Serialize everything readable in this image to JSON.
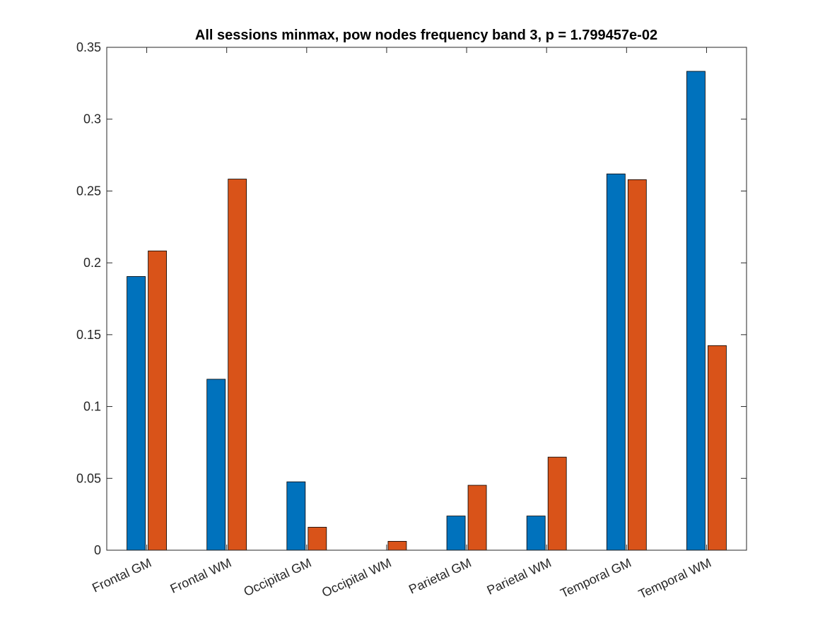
{
  "chart_data": {
    "type": "bar",
    "title": "All sessions minmax, pow nodes frequency band 3, p = 1.799457e-02",
    "xlabel": "",
    "ylabel": "",
    "categories": [
      "Frontal GM",
      "Frontal WM",
      "Occipital GM",
      "Occipital WM",
      "Parietal GM",
      "Parietal WM",
      "Temporal GM",
      "Temporal WM"
    ],
    "series": [
      {
        "values": [
          0.1905,
          0.119,
          0.0476,
          0.0,
          0.0238,
          0.0238,
          0.2619,
          0.3333
        ]
      },
      {
        "values": [
          0.2083,
          0.2583,
          0.016,
          0.0062,
          0.0452,
          0.0648,
          0.2579,
          0.1424
        ]
      }
    ],
    "colors": [
      "#0072bd",
      "#d95319"
    ],
    "ylim": [
      0,
      0.35
    ],
    "yticks": [
      "0",
      "0.05",
      "0.1",
      "0.15",
      "0.2",
      "0.25",
      "0.3",
      "0.35"
    ],
    "grid": false,
    "legend": "none"
  }
}
